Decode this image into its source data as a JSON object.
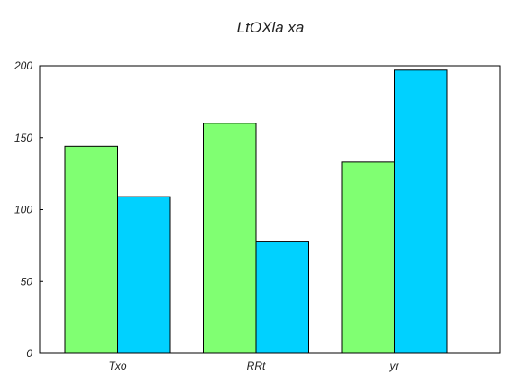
{
  "chart_data": {
    "type": "bar",
    "title": "LtOXla xa",
    "xlabel": "",
    "ylabel": "",
    "categories": [
      "Txo",
      "RRt",
      "yr"
    ],
    "series": [
      {
        "values": [
          144,
          160,
          133
        ],
        "color": "#80ff72"
      },
      {
        "values": [
          109,
          78,
          197
        ],
        "color": "#00d1ff"
      }
    ],
    "ylim": [
      0,
      200
    ],
    "yticks": [
      0,
      50,
      100,
      150,
      200
    ],
    "grid": false,
    "legend": "none"
  }
}
